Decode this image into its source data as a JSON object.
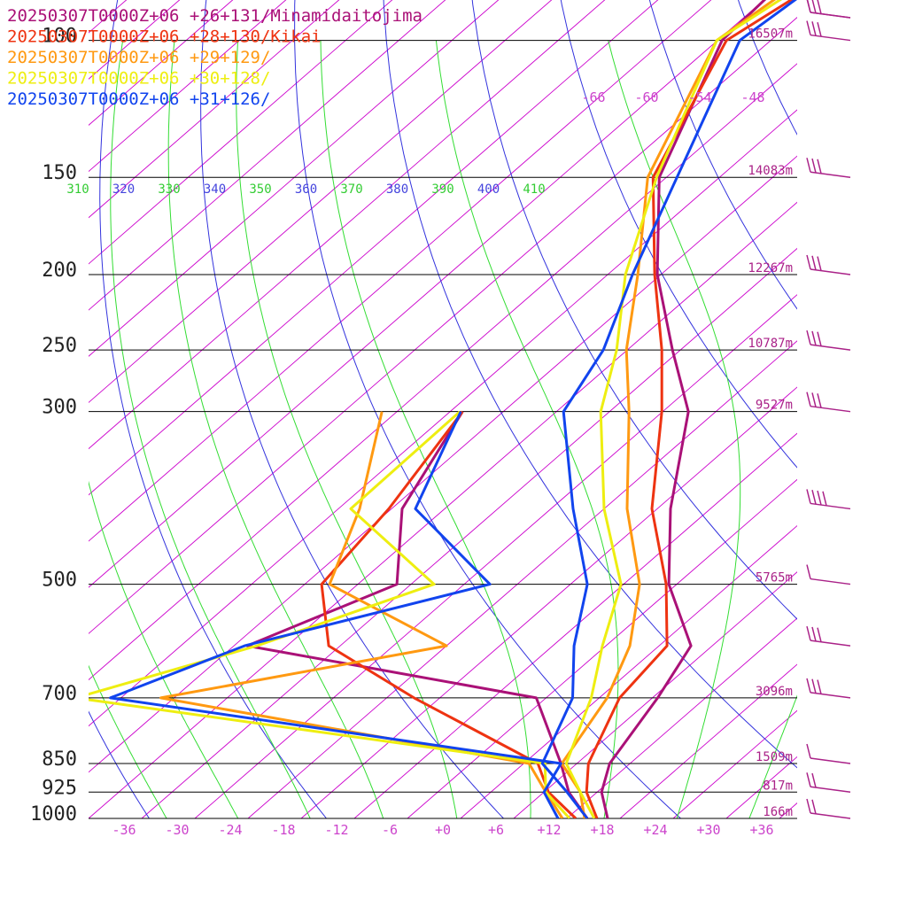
{
  "colors": {
    "isobar": "#000000",
    "skew_isotherm": "#cc00cc",
    "dry_adiabat": "#3333dd",
    "moist_adiabat": "#33dd33",
    "tick_label": "#cc44cc",
    "height_label": "#aa2288",
    "theta_blue": "#4444dd",
    "theta_green": "#33cc33",
    "barb": "#aa2288"
  },
  "chart_data": {
    "type": "line",
    "title": "",
    "xlabel": "",
    "ylabel": "",
    "xlim": [
      -40,
      40
    ],
    "plevels": [
      {
        "p": 100,
        "label": "100",
        "height": "16507m"
      },
      {
        "p": 150,
        "label": "150",
        "height": "14083m"
      },
      {
        "p": 200,
        "label": "200",
        "height": "12267m"
      },
      {
        "p": 250,
        "label": "250",
        "height": "10787m"
      },
      {
        "p": 300,
        "label": "300",
        "height": "9527m"
      },
      {
        "p": 500,
        "label": "500",
        "height": "5765m"
      },
      {
        "p": 700,
        "label": "700",
        "height": "3096m"
      },
      {
        "p": 850,
        "label": "850",
        "height": "1509m"
      },
      {
        "p": 925,
        "label": "925",
        "height": "817m"
      },
      {
        "p": 1000,
        "label": "1000",
        "height": "166m"
      }
    ],
    "x_ticks": [
      "-36",
      "-30",
      "-24",
      "-18",
      "-12",
      "-6",
      "+0",
      "+6",
      "+12",
      "+18",
      "+24",
      "+30",
      "+36"
    ],
    "upper_ticks": [
      "-66",
      "-60",
      "-54",
      "-48"
    ],
    "theta_labels": [
      "310",
      "320",
      "330",
      "340",
      "350",
      "360",
      "370",
      "380",
      "390",
      "400",
      "410"
    ],
    "series": [
      {
        "name": "20250307T0000Z+06 +26+131/Minamidaitojima",
        "color": "#aa1177",
        "temperature": [
          [
            1000,
            18.6
          ],
          [
            925,
            14.5
          ],
          [
            850,
            11.7
          ],
          [
            700,
            8.6
          ],
          [
            600,
            5.6
          ],
          [
            500,
            -4.9
          ],
          [
            400,
            -14.5
          ],
          [
            300,
            -25.1
          ],
          [
            250,
            -34.9
          ],
          [
            200,
            -46.4
          ],
          [
            150,
            -58.8
          ],
          [
            100,
            -69.5
          ],
          [
            70,
            -70.9
          ],
          [
            60,
            -65.0
          ]
        ],
        "dewpoint": [
          [
            1000,
            16.3
          ],
          [
            925,
            10.8
          ],
          [
            850,
            6.2
          ],
          [
            700,
            -5.1
          ],
          [
            600,
            -44.5
          ],
          [
            500,
            -35.6
          ],
          [
            400,
            -44.8
          ],
          [
            300,
            -50.6
          ]
        ]
      },
      {
        "name": "20250307T0000Z+06 +28+130/Kikai",
        "color": "#ee3311",
        "temperature": [
          [
            1000,
            17.4
          ],
          [
            925,
            12.8
          ],
          [
            850,
            9.3
          ],
          [
            700,
            4.3
          ],
          [
            600,
            2.9
          ],
          [
            500,
            -5.2
          ],
          [
            400,
            -16.6
          ],
          [
            300,
            -28.1
          ],
          [
            250,
            -36.1
          ],
          [
            200,
            -46.7
          ],
          [
            150,
            -59.5
          ],
          [
            100,
            -69.0
          ],
          [
            60,
            -60.3
          ]
        ],
        "dewpoint": [
          [
            1000,
            15.0
          ],
          [
            925,
            8.5
          ],
          [
            850,
            3.6
          ],
          [
            700,
            -18.9
          ],
          [
            600,
            -35.3
          ],
          [
            500,
            -44.1
          ],
          [
            400,
            -46.3
          ],
          [
            300,
            -50.6
          ]
        ]
      },
      {
        "name": "20250307T0000Z+06 +29+129/",
        "color": "#ff9911",
        "temperature": [
          [
            1000,
            16.0
          ],
          [
            925,
            12.1
          ],
          [
            850,
            6.3
          ],
          [
            700,
            2.9
          ],
          [
            600,
            -1.3
          ],
          [
            500,
            -8.2
          ],
          [
            400,
            -19.4
          ],
          [
            300,
            -31.8
          ],
          [
            250,
            -40.1
          ],
          [
            200,
            -48.6
          ],
          [
            150,
            -60.1
          ],
          [
            100,
            -70.1
          ],
          [
            60,
            -65.0
          ]
        ],
        "dewpoint": [
          [
            1000,
            13.5
          ],
          [
            925,
            8.2
          ],
          [
            850,
            2.6
          ],
          [
            700,
            -47.5
          ],
          [
            600,
            -22.0
          ],
          [
            500,
            -43.2
          ],
          [
            400,
            -49.6
          ],
          [
            300,
            -59.7
          ]
        ]
      },
      {
        "name": "20250307T0000Z+06 +30+128/",
        "color": "#eeee11",
        "temperature": [
          [
            1000,
            17.1
          ],
          [
            925,
            12.1
          ],
          [
            850,
            6.8
          ],
          [
            700,
            1.1
          ],
          [
            600,
            -4.4
          ],
          [
            500,
            -10.3
          ],
          [
            400,
            -22.0
          ],
          [
            300,
            -35.0
          ],
          [
            250,
            -41.2
          ],
          [
            200,
            -50.0
          ],
          [
            150,
            -59.1
          ],
          [
            100,
            -70.1
          ],
          [
            60,
            -62.1
          ]
        ],
        "dewpoint": [
          [
            1000,
            14.3
          ],
          [
            925,
            8.2
          ],
          [
            850,
            4.4
          ],
          [
            700,
            -57.1
          ],
          [
            600,
            -43.4
          ],
          [
            500,
            -31.4
          ],
          [
            400,
            -50.6
          ],
          [
            300,
            -50.9
          ]
        ]
      },
      {
        "name": "20250307T0000Z+06 +31+126/",
        "color": "#1144ee",
        "temperature": [
          [
            1000,
            16.3
          ],
          [
            925,
            10.6
          ],
          [
            850,
            4.1
          ],
          [
            700,
            -1.0
          ],
          [
            600,
            -7.6
          ],
          [
            500,
            -14.1
          ],
          [
            400,
            -25.5
          ],
          [
            300,
            -39.2
          ],
          [
            250,
            -42.7
          ],
          [
            200,
            -49.2
          ],
          [
            150,
            -56.8
          ],
          [
            100,
            -67.5
          ],
          [
            60,
            -63.3
          ]
        ],
        "dewpoint": [
          [
            1000,
            13.0
          ],
          [
            925,
            8.0
          ],
          [
            850,
            6.2
          ],
          [
            700,
            -53.2
          ],
          [
            600,
            -44.8
          ],
          [
            500,
            -25.1
          ],
          [
            400,
            -43.3
          ],
          [
            300,
            -50.8
          ]
        ]
      }
    ],
    "wind_barbs": [
      {
        "p": 60,
        "barbs": 1,
        "pennants": 0
      },
      {
        "p": 85,
        "barbs": 3,
        "pennants": 0
      },
      {
        "p": 100,
        "barbs": 3,
        "pennants": 0
      },
      {
        "p": 150,
        "barbs": 3,
        "pennants": 0
      },
      {
        "p": 200,
        "barbs": 3,
        "pennants": 0
      },
      {
        "p": 250,
        "barbs": 3,
        "pennants": 0
      },
      {
        "p": 300,
        "barbs": 3,
        "pennants": 0
      },
      {
        "p": 400,
        "barbs": 4,
        "pennants": 0
      },
      {
        "p": 500,
        "barbs": 1,
        "pennants": 0
      },
      {
        "p": 600,
        "barbs": 3,
        "pennants": 0
      },
      {
        "p": 700,
        "barbs": 3,
        "pennants": 0
      },
      {
        "p": 850,
        "barbs": 1,
        "pennants": 0
      },
      {
        "p": 925,
        "barbs": 2,
        "pennants": 0
      },
      {
        "p": 1000,
        "barbs": 2,
        "pennants": 0
      }
    ]
  }
}
